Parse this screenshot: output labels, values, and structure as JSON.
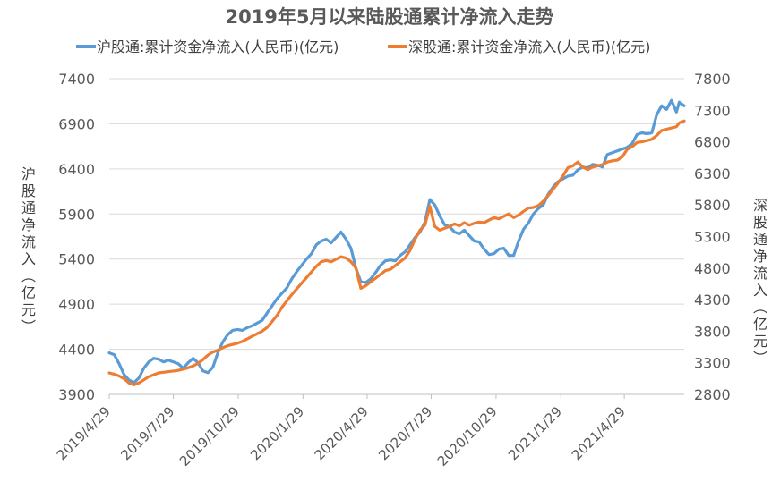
{
  "chart_data": {
    "type": "line",
    "title": "2019年5月以来陆股通累计净流入走势",
    "legend_position": "top",
    "grid": "horizontal",
    "ylabel_left": "沪股通净流入（亿元）",
    "ylabel_right": "深股通净流入（亿元）",
    "ylim_left": [
      3900,
      7400
    ],
    "ylim_right": [
      2800,
      7800
    ],
    "yticks_left": [
      "3900",
      "4400",
      "4900",
      "5400",
      "5900",
      "6400",
      "6900",
      "7400"
    ],
    "yticks_right": [
      "2800",
      "3300",
      "3800",
      "4300",
      "4800",
      "5300",
      "5800",
      "6300",
      "6800",
      "7300",
      "7800"
    ],
    "x_tick_labels": [
      "2019/4/29",
      "2019/7/29",
      "2019/10/29",
      "2020/1/29",
      "2020/4/29",
      "2020/7/29",
      "2020/10/29",
      "2021/1/29",
      "2021/4/29"
    ],
    "x_range": [
      "2019-04-29",
      "2021-07-23"
    ],
    "series": [
      {
        "name": "沪股通:累计资金净流入(人民币)(亿元)",
        "axis": "left",
        "color": "#5B9BD5",
        "points": [
          [
            "2019-04-29",
            4360
          ],
          [
            "2019-05-06",
            4340
          ],
          [
            "2019-05-13",
            4240
          ],
          [
            "2019-05-20",
            4120
          ],
          [
            "2019-05-27",
            4060
          ],
          [
            "2019-06-03",
            4030
          ],
          [
            "2019-06-10",
            4080
          ],
          [
            "2019-06-17",
            4190
          ],
          [
            "2019-06-24",
            4260
          ],
          [
            "2019-07-01",
            4300
          ],
          [
            "2019-07-08",
            4290
          ],
          [
            "2019-07-15",
            4260
          ],
          [
            "2019-07-22",
            4280
          ],
          [
            "2019-07-29",
            4260
          ],
          [
            "2019-08-05",
            4240
          ],
          [
            "2019-08-12",
            4190
          ],
          [
            "2019-08-19",
            4250
          ],
          [
            "2019-08-26",
            4300
          ],
          [
            "2019-09-02",
            4250
          ],
          [
            "2019-09-09",
            4160
          ],
          [
            "2019-09-16",
            4140
          ],
          [
            "2019-09-23",
            4200
          ],
          [
            "2019-09-30",
            4360
          ],
          [
            "2019-10-07",
            4480
          ],
          [
            "2019-10-14",
            4560
          ],
          [
            "2019-10-21",
            4610
          ],
          [
            "2019-10-28",
            4620
          ],
          [
            "2019-11-04",
            4610
          ],
          [
            "2019-11-11",
            4640
          ],
          [
            "2019-11-18",
            4660
          ],
          [
            "2019-11-25",
            4690
          ],
          [
            "2019-12-02",
            4720
          ],
          [
            "2019-12-09",
            4800
          ],
          [
            "2019-12-16",
            4880
          ],
          [
            "2019-12-23",
            4960
          ],
          [
            "2019-12-30",
            5020
          ],
          [
            "2020-01-06",
            5080
          ],
          [
            "2020-01-13",
            5180
          ],
          [
            "2020-01-20",
            5260
          ],
          [
            "2020-01-27",
            5330
          ],
          [
            "2020-02-03",
            5400
          ],
          [
            "2020-02-10",
            5460
          ],
          [
            "2020-02-17",
            5560
          ],
          [
            "2020-02-24",
            5600
          ],
          [
            "2020-03-02",
            5620
          ],
          [
            "2020-03-09",
            5580
          ],
          [
            "2020-03-16",
            5640
          ],
          [
            "2020-03-23",
            5700
          ],
          [
            "2020-03-30",
            5620
          ],
          [
            "2020-04-06",
            5520
          ],
          [
            "2020-04-13",
            5300
          ],
          [
            "2020-04-20",
            5150
          ],
          [
            "2020-04-27",
            5140
          ],
          [
            "2020-05-04",
            5180
          ],
          [
            "2020-05-11",
            5250
          ],
          [
            "2020-05-18",
            5330
          ],
          [
            "2020-05-25",
            5380
          ],
          [
            "2020-06-01",
            5390
          ],
          [
            "2020-06-08",
            5380
          ],
          [
            "2020-06-15",
            5440
          ],
          [
            "2020-06-22",
            5480
          ],
          [
            "2020-06-29",
            5560
          ],
          [
            "2020-07-06",
            5640
          ],
          [
            "2020-07-13",
            5700
          ],
          [
            "2020-07-20",
            5810
          ],
          [
            "2020-07-27",
            6060
          ],
          [
            "2020-08-03",
            6000
          ],
          [
            "2020-08-10",
            5880
          ],
          [
            "2020-08-17",
            5780
          ],
          [
            "2020-08-24",
            5760
          ],
          [
            "2020-08-31",
            5700
          ],
          [
            "2020-09-07",
            5680
          ],
          [
            "2020-09-14",
            5720
          ],
          [
            "2020-09-21",
            5660
          ],
          [
            "2020-09-28",
            5600
          ],
          [
            "2020-10-05",
            5590
          ],
          [
            "2020-10-12",
            5510
          ],
          [
            "2020-10-19",
            5450
          ],
          [
            "2020-10-26",
            5460
          ],
          [
            "2020-11-02",
            5510
          ],
          [
            "2020-11-09",
            5520
          ],
          [
            "2020-11-16",
            5440
          ],
          [
            "2020-11-23",
            5440
          ],
          [
            "2020-11-30",
            5600
          ],
          [
            "2020-12-07",
            5730
          ],
          [
            "2020-12-14",
            5800
          ],
          [
            "2020-12-21",
            5900
          ],
          [
            "2020-12-28",
            5960
          ],
          [
            "2021-01-04",
            6000
          ],
          [
            "2021-01-11",
            6120
          ],
          [
            "2021-01-18",
            6200
          ],
          [
            "2021-01-25",
            6260
          ],
          [
            "2021-02-01",
            6290
          ],
          [
            "2021-02-08",
            6320
          ],
          [
            "2021-02-15",
            6330
          ],
          [
            "2021-02-22",
            6390
          ],
          [
            "2021-03-01",
            6420
          ],
          [
            "2021-03-08",
            6410
          ],
          [
            "2021-03-15",
            6450
          ],
          [
            "2021-03-22",
            6440
          ],
          [
            "2021-03-29",
            6420
          ],
          [
            "2021-04-05",
            6560
          ],
          [
            "2021-04-12",
            6580
          ],
          [
            "2021-04-19",
            6600
          ],
          [
            "2021-04-26",
            6620
          ],
          [
            "2021-05-03",
            6640
          ],
          [
            "2021-05-10",
            6680
          ],
          [
            "2021-05-17",
            6780
          ],
          [
            "2021-05-24",
            6800
          ],
          [
            "2021-05-31",
            6790
          ],
          [
            "2021-06-07",
            6800
          ],
          [
            "2021-06-14",
            7000
          ],
          [
            "2021-06-21",
            7100
          ],
          [
            "2021-06-28",
            7060
          ],
          [
            "2021-07-05",
            7160
          ],
          [
            "2021-07-12",
            7030
          ],
          [
            "2021-07-16",
            7140
          ],
          [
            "2021-07-23",
            7100
          ]
        ]
      },
      {
        "name": "深股通:累计资金净流入(人民币)(亿元)",
        "axis": "right",
        "color": "#ED7D31",
        "points": [
          [
            "2019-04-29",
            3140
          ],
          [
            "2019-05-06",
            3120
          ],
          [
            "2019-05-13",
            3090
          ],
          [
            "2019-05-20",
            3050
          ],
          [
            "2019-05-27",
            2980
          ],
          [
            "2019-06-03",
            2950
          ],
          [
            "2019-06-10",
            2980
          ],
          [
            "2019-06-17",
            3030
          ],
          [
            "2019-06-24",
            3080
          ],
          [
            "2019-07-01",
            3110
          ],
          [
            "2019-07-08",
            3140
          ],
          [
            "2019-07-15",
            3150
          ],
          [
            "2019-07-22",
            3160
          ],
          [
            "2019-07-29",
            3170
          ],
          [
            "2019-08-05",
            3180
          ],
          [
            "2019-08-12",
            3200
          ],
          [
            "2019-08-19",
            3220
          ],
          [
            "2019-08-26",
            3250
          ],
          [
            "2019-09-02",
            3290
          ],
          [
            "2019-09-09",
            3350
          ],
          [
            "2019-09-16",
            3420
          ],
          [
            "2019-09-23",
            3470
          ],
          [
            "2019-09-30",
            3500
          ],
          [
            "2019-10-07",
            3540
          ],
          [
            "2019-10-14",
            3570
          ],
          [
            "2019-10-21",
            3590
          ],
          [
            "2019-10-28",
            3610
          ],
          [
            "2019-11-04",
            3640
          ],
          [
            "2019-11-11",
            3680
          ],
          [
            "2019-11-18",
            3720
          ],
          [
            "2019-11-25",
            3760
          ],
          [
            "2019-12-02",
            3800
          ],
          [
            "2019-12-09",
            3860
          ],
          [
            "2019-12-16",
            3950
          ],
          [
            "2019-12-23",
            4050
          ],
          [
            "2019-12-30",
            4180
          ],
          [
            "2020-01-06",
            4280
          ],
          [
            "2020-01-13",
            4380
          ],
          [
            "2020-01-20",
            4470
          ],
          [
            "2020-01-27",
            4560
          ],
          [
            "2020-02-03",
            4650
          ],
          [
            "2020-02-10",
            4740
          ],
          [
            "2020-02-17",
            4830
          ],
          [
            "2020-02-24",
            4900
          ],
          [
            "2020-03-02",
            4920
          ],
          [
            "2020-03-09",
            4900
          ],
          [
            "2020-03-16",
            4940
          ],
          [
            "2020-03-23",
            4980
          ],
          [
            "2020-03-30",
            4960
          ],
          [
            "2020-04-06",
            4900
          ],
          [
            "2020-04-13",
            4800
          ],
          [
            "2020-04-20",
            4480
          ],
          [
            "2020-04-27",
            4520
          ],
          [
            "2020-05-04",
            4580
          ],
          [
            "2020-05-11",
            4640
          ],
          [
            "2020-05-18",
            4700
          ],
          [
            "2020-05-25",
            4760
          ],
          [
            "2020-06-01",
            4780
          ],
          [
            "2020-06-08",
            4840
          ],
          [
            "2020-06-15",
            4900
          ],
          [
            "2020-06-22",
            4960
          ],
          [
            "2020-06-29",
            5080
          ],
          [
            "2020-07-06",
            5260
          ],
          [
            "2020-07-13",
            5400
          ],
          [
            "2020-07-20",
            5480
          ],
          [
            "2020-07-27",
            5780
          ],
          [
            "2020-08-03",
            5460
          ],
          [
            "2020-08-10",
            5400
          ],
          [
            "2020-08-17",
            5430
          ],
          [
            "2020-08-24",
            5460
          ],
          [
            "2020-08-31",
            5500
          ],
          [
            "2020-09-07",
            5470
          ],
          [
            "2020-09-14",
            5520
          ],
          [
            "2020-09-21",
            5480
          ],
          [
            "2020-09-28",
            5510
          ],
          [
            "2020-10-05",
            5530
          ],
          [
            "2020-10-12",
            5520
          ],
          [
            "2020-10-19",
            5560
          ],
          [
            "2020-10-26",
            5600
          ],
          [
            "2020-11-02",
            5580
          ],
          [
            "2020-11-09",
            5620
          ],
          [
            "2020-11-16",
            5660
          ],
          [
            "2020-11-23",
            5600
          ],
          [
            "2020-11-30",
            5640
          ],
          [
            "2020-12-07",
            5700
          ],
          [
            "2020-12-14",
            5750
          ],
          [
            "2020-12-21",
            5760
          ],
          [
            "2020-12-28",
            5790
          ],
          [
            "2021-01-04",
            5860
          ],
          [
            "2021-01-11",
            5950
          ],
          [
            "2021-01-18",
            6050
          ],
          [
            "2021-01-25",
            6150
          ],
          [
            "2021-02-01",
            6260
          ],
          [
            "2021-02-08",
            6390
          ],
          [
            "2021-02-15",
            6420
          ],
          [
            "2021-02-22",
            6480
          ],
          [
            "2021-03-01",
            6400
          ],
          [
            "2021-03-08",
            6360
          ],
          [
            "2021-03-15",
            6400
          ],
          [
            "2021-03-22",
            6420
          ],
          [
            "2021-03-29",
            6440
          ],
          [
            "2021-04-05",
            6480
          ],
          [
            "2021-04-12",
            6500
          ],
          [
            "2021-04-19",
            6510
          ],
          [
            "2021-04-26",
            6560
          ],
          [
            "2021-05-03",
            6680
          ],
          [
            "2021-05-10",
            6720
          ],
          [
            "2021-05-17",
            6790
          ],
          [
            "2021-05-24",
            6800
          ],
          [
            "2021-05-31",
            6820
          ],
          [
            "2021-06-07",
            6840
          ],
          [
            "2021-06-14",
            6900
          ],
          [
            "2021-06-21",
            6980
          ],
          [
            "2021-06-28",
            7000
          ],
          [
            "2021-07-05",
            7020
          ],
          [
            "2021-07-12",
            7040
          ],
          [
            "2021-07-16",
            7100
          ],
          [
            "2021-07-23",
            7130
          ]
        ]
      }
    ]
  }
}
